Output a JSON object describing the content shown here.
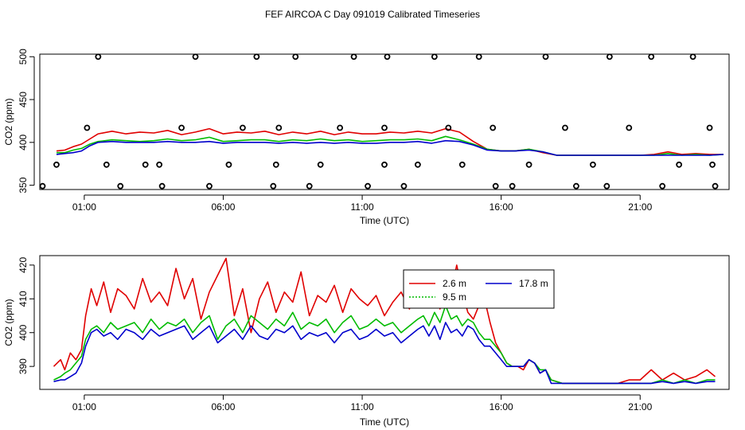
{
  "figure_title": "FEF AIRCOA C  Day 091019  Calibrated Timeseries",
  "colors": {
    "s1": "#e00000",
    "s2": "#00bb00",
    "s3": "#0000cc",
    "axis": "#000000"
  },
  "chart_data": [
    {
      "type": "line",
      "panel": "top",
      "xlabel": "Time (UTC)",
      "ylabel": "CO2 (ppm)",
      "xlim": [
        -0.6,
        24.2
      ],
      "ylim": [
        345,
        503
      ],
      "xticks": [
        1,
        6,
        11,
        16,
        21
      ],
      "xtick_labels": [
        "01:00",
        "06:00",
        "11:00",
        "16:00",
        "21:00"
      ],
      "yticks": [
        350,
        400,
        450,
        500
      ],
      "ytick_labels": [
        "350",
        "400",
        "450",
        "500"
      ],
      "legend": "none",
      "series": [
        {
          "name": "2.6 m",
          "color_key": "s1",
          "x": [
            0,
            0.3,
            0.6,
            0.9,
            1.2,
            1.5,
            2,
            2.5,
            3,
            3.5,
            4,
            4.5,
            5,
            5.5,
            6,
            6.5,
            7,
            7.5,
            8,
            8.5,
            9,
            9.5,
            10,
            10.5,
            11,
            11.5,
            12,
            12.5,
            13,
            13.5,
            14,
            14.5,
            15,
            15.5,
            16,
            16.5,
            17,
            17.5,
            18,
            19,
            20,
            21,
            21.5,
            22,
            22.5,
            23,
            23.5,
            24
          ],
          "values": [
            390,
            391,
            395,
            398,
            404,
            410,
            413,
            410,
            412,
            411,
            414,
            409,
            412,
            416,
            410,
            412,
            411,
            413,
            409,
            412,
            410,
            413,
            409,
            412,
            410,
            410,
            412,
            411,
            413,
            411,
            416,
            412,
            401,
            392,
            390,
            390,
            392,
            388,
            385,
            385,
            385,
            385,
            386,
            389,
            386,
            387,
            386,
            386
          ]
        },
        {
          "name": "9.5 m",
          "color_key": "s2",
          "x": [
            0,
            0.3,
            0.6,
            0.9,
            1.2,
            1.5,
            2,
            2.5,
            3,
            3.5,
            4,
            4.5,
            5,
            5.5,
            6,
            6.5,
            7,
            7.5,
            8,
            8.5,
            9,
            9.5,
            10,
            10.5,
            11,
            11.5,
            12,
            12.5,
            13,
            13.5,
            14,
            14.5,
            15,
            15.5,
            16,
            16.5,
            17,
            17.5,
            18,
            19,
            20,
            21,
            21.5,
            22,
            22.5,
            23,
            23.5,
            24
          ],
          "values": [
            388,
            388,
            391,
            393,
            398,
            401,
            403,
            402,
            401,
            402,
            404,
            402,
            403,
            406,
            401,
            402,
            403,
            403,
            401,
            403,
            402,
            404,
            402,
            403,
            401,
            402,
            403,
            403,
            404,
            402,
            407,
            403,
            398,
            392,
            390,
            390,
            392,
            389,
            385,
            385,
            385,
            385,
            385,
            387,
            385,
            386,
            385,
            386
          ]
        },
        {
          "name": "17.8 m",
          "color_key": "s3",
          "x": [
            0,
            0.3,
            0.6,
            0.9,
            1.2,
            1.5,
            2,
            2.5,
            3,
            3.5,
            4,
            4.5,
            5,
            5.5,
            6,
            6.5,
            7,
            7.5,
            8,
            8.5,
            9,
            9.5,
            10,
            10.5,
            11,
            11.5,
            12,
            12.5,
            13,
            13.5,
            14,
            14.5,
            15,
            15.5,
            16,
            16.5,
            17,
            17.5,
            18,
            19,
            20,
            21,
            21.5,
            22,
            22.5,
            23,
            23.5,
            24
          ],
          "values": [
            386,
            387,
            388,
            390,
            396,
            400,
            401,
            400,
            400,
            400,
            401,
            400,
            400,
            401,
            399,
            400,
            400,
            400,
            399,
            400,
            399,
            400,
            399,
            400,
            399,
            399,
            400,
            400,
            401,
            399,
            402,
            401,
            397,
            391,
            390,
            390,
            391,
            389,
            385,
            385,
            385,
            385,
            385,
            385,
            385,
            385,
            385,
            386
          ]
        }
      ],
      "points": {
        "name": "calibration points",
        "x": [
          -0.5,
          0,
          1.1,
          1.5,
          1.8,
          2.3,
          3.2,
          3.7,
          3.8,
          4.5,
          5,
          5.5,
          6.2,
          6.7,
          7.2,
          7.8,
          7.9,
          8,
          8.6,
          9.1,
          9.5,
          10.2,
          10.7,
          11.2,
          11.8,
          11.8,
          11.9,
          12.5,
          13,
          13.6,
          14.1,
          14.6,
          15.2,
          15.7,
          15.8,
          16.4,
          17,
          17.6,
          18.3,
          18.7,
          19.3,
          19.8,
          19.9,
          20.6,
          21.4,
          21.8,
          22.4,
          22.9,
          23.5,
          23.6,
          23.7
        ],
        "values": [
          349,
          374,
          417,
          500,
          374,
          349,
          374,
          374,
          349,
          417,
          500,
          349,
          374,
          417,
          500,
          349,
          374,
          417,
          500,
          349,
          374,
          417,
          500,
          349,
          374,
          417,
          500,
          349,
          374,
          500,
          417,
          374,
          500,
          417,
          349,
          349,
          374,
          500,
          417,
          349,
          374,
          349,
          500,
          417,
          500,
          349,
          374,
          500,
          417,
          374,
          349
        ]
      }
    },
    {
      "type": "line",
      "panel": "bottom",
      "xlabel": "Time (UTC)",
      "ylabel": "CO2 (ppm)",
      "xlim": [
        -0.6,
        24.2
      ],
      "ylim": [
        383.2,
        422.8
      ],
      "xticks": [
        1,
        6,
        11,
        16,
        21
      ],
      "xtick_labels": [
        "01:00",
        "06:00",
        "11:00",
        "16:00",
        "21:00"
      ],
      "yticks": [
        390,
        400,
        410,
        420
      ],
      "ytick_labels": [
        "390",
        "400",
        "410",
        "420"
      ],
      "legend": "top-right",
      "series": [
        {
          "name": "2.6 m",
          "color_key": "s1",
          "x": [
            -0.1,
            0.15,
            0.3,
            0.5,
            0.7,
            0.9,
            1.05,
            1.25,
            1.45,
            1.7,
            1.95,
            2.2,
            2.5,
            2.8,
            3.1,
            3.4,
            3.7,
            4,
            4.3,
            4.6,
            4.9,
            5.2,
            5.5,
            5.8,
            6.1,
            6.4,
            6.7,
            7,
            7.3,
            7.6,
            7.9,
            8.2,
            8.5,
            8.8,
            9.1,
            9.4,
            9.7,
            10,
            10.3,
            10.6,
            10.9,
            11.2,
            11.5,
            11.8,
            12.1,
            12.4,
            12.7,
            13,
            13.2,
            13.4,
            13.6,
            13.8,
            14,
            14.2,
            14.4,
            14.6,
            14.8,
            15,
            15.2,
            15.4,
            15.6,
            15.8,
            16,
            16.2,
            16.4,
            16.6,
            16.8,
            17,
            17.2,
            17.4,
            17.6,
            17.8,
            18.2,
            18.6,
            19,
            19.4,
            19.8,
            20.2,
            20.6,
            21,
            21.4,
            21.8,
            22.2,
            22.6,
            23,
            23.4,
            23.7
          ],
          "values": [
            390,
            392,
            389,
            394,
            392,
            395,
            405,
            413,
            408,
            415,
            406,
            413,
            411,
            407,
            416,
            409,
            412,
            408,
            419,
            410,
            416,
            404,
            412,
            417,
            422,
            405,
            413,
            400,
            410,
            415,
            406,
            412,
            409,
            418,
            405,
            411,
            409,
            414,
            406,
            413,
            410,
            408,
            411,
            405,
            409,
            412,
            407,
            416,
            408,
            410,
            413,
            407,
            418,
            412,
            420,
            412,
            406,
            404,
            408,
            410,
            403,
            397,
            394,
            391,
            390,
            390,
            389,
            392,
            391,
            388,
            389,
            386,
            385,
            385,
            385,
            385,
            385,
            385,
            386,
            386,
            389,
            386,
            388,
            386,
            387,
            389,
            387
          ]
        },
        {
          "name": "9.5 m",
          "color_key": "s2",
          "x": [
            -0.1,
            0.15,
            0.3,
            0.5,
            0.7,
            0.9,
            1.05,
            1.25,
            1.45,
            1.7,
            1.95,
            2.2,
            2.5,
            2.8,
            3.1,
            3.4,
            3.7,
            4,
            4.3,
            4.6,
            4.9,
            5.2,
            5.5,
            5.8,
            6.1,
            6.4,
            6.7,
            7,
            7.3,
            7.6,
            7.9,
            8.2,
            8.5,
            8.8,
            9.1,
            9.4,
            9.7,
            10,
            10.3,
            10.6,
            10.9,
            11.2,
            11.5,
            11.8,
            12.1,
            12.4,
            12.7,
            13,
            13.2,
            13.4,
            13.6,
            13.8,
            14,
            14.2,
            14.4,
            14.6,
            14.8,
            15,
            15.2,
            15.4,
            15.6,
            15.8,
            16,
            16.2,
            16.4,
            16.6,
            16.8,
            17,
            17.2,
            17.4,
            17.6,
            17.8,
            18.2,
            18.6,
            19,
            19.4,
            19.8,
            20.2,
            20.6,
            21,
            21.4,
            21.8,
            22.2,
            22.6,
            23,
            23.4,
            23.7
          ],
          "values": [
            386,
            387,
            388,
            389,
            391,
            393,
            398,
            401,
            402,
            400,
            403,
            401,
            402,
            403,
            400,
            404,
            401,
            403,
            402,
            404,
            400,
            403,
            405,
            398,
            402,
            404,
            400,
            405,
            403,
            401,
            404,
            402,
            406,
            401,
            403,
            402,
            404,
            400,
            403,
            405,
            401,
            402,
            404,
            402,
            403,
            400,
            402,
            404,
            405,
            402,
            406,
            403,
            408,
            404,
            405,
            402,
            404,
            403,
            400,
            398,
            398,
            396,
            394,
            391,
            390,
            390,
            390,
            392,
            391,
            389,
            389,
            386,
            385,
            385,
            385,
            385,
            385,
            385,
            385,
            385,
            385,
            386,
            385,
            386,
            385,
            386,
            386
          ]
        },
        {
          "name": "17.8 m",
          "color_key": "s3",
          "x": [
            -0.1,
            0.15,
            0.3,
            0.5,
            0.7,
            0.9,
            1.05,
            1.25,
            1.45,
            1.7,
            1.95,
            2.2,
            2.5,
            2.8,
            3.1,
            3.4,
            3.7,
            4,
            4.3,
            4.6,
            4.9,
            5.2,
            5.5,
            5.8,
            6.1,
            6.4,
            6.7,
            7,
            7.3,
            7.6,
            7.9,
            8.2,
            8.5,
            8.8,
            9.1,
            9.4,
            9.7,
            10,
            10.3,
            10.6,
            10.9,
            11.2,
            11.5,
            11.8,
            12.1,
            12.4,
            12.7,
            13,
            13.2,
            13.4,
            13.6,
            13.8,
            14,
            14.2,
            14.4,
            14.6,
            14.8,
            15,
            15.2,
            15.4,
            15.6,
            15.8,
            16,
            16.2,
            16.4,
            16.6,
            16.8,
            17,
            17.2,
            17.4,
            17.6,
            17.8,
            18.2,
            18.6,
            19,
            19.4,
            19.8,
            20.2,
            20.6,
            21,
            21.4,
            21.8,
            22.2,
            22.6,
            23,
            23.4,
            23.7
          ],
          "values": [
            385.5,
            386,
            386,
            387,
            388,
            391,
            396,
            400,
            401,
            399,
            400,
            398,
            401,
            400,
            398,
            401,
            399,
            400,
            401,
            402,
            398,
            400,
            402,
            397,
            399,
            401,
            398,
            402,
            399,
            398,
            401,
            400,
            402,
            398,
            400,
            399,
            400,
            397,
            400,
            401,
            398,
            399,
            401,
            399,
            400,
            397,
            399,
            401,
            402,
            399,
            402,
            398,
            403,
            400,
            401,
            399,
            402,
            401,
            398,
            396,
            396,
            394,
            392,
            390,
            390,
            390,
            390,
            392,
            391,
            388,
            389,
            385,
            385,
            385,
            385,
            385,
            385,
            385,
            385,
            385,
            385,
            385.5,
            385,
            385.5,
            385,
            385.5,
            385.5
          ]
        }
      ]
    }
  ]
}
